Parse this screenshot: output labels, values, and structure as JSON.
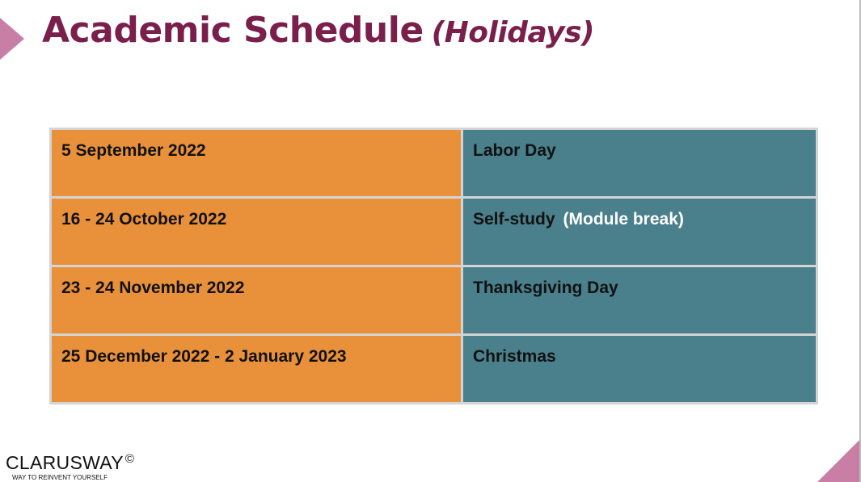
{
  "title": {
    "main": "Academic Schedule",
    "sub": "(Holidays)"
  },
  "schedule": [
    {
      "date": "5 September 2022",
      "event": "Labor Day",
      "extra": ""
    },
    {
      "date": "16 - 24 October 2022",
      "event": "Self-study",
      "extra": "(Module break)"
    },
    {
      "date": "23 - 24 November 2022",
      "event": "Thanksgiving Day",
      "extra": ""
    },
    {
      "date": "25 December 2022 - 2 January 2023",
      "event": "Christmas",
      "extra": ""
    }
  ],
  "brand": {
    "name": "CLARUSWAY",
    "mark": "©",
    "tagline": "WAY TO REINVENT YOURSELF"
  },
  "colors": {
    "title": "#7a1f4b",
    "date_cell": "#e9913a",
    "event_cell": "#4a7f8c",
    "accent_shape": "#c97fa5"
  },
  "icons": [
    "left-arrow-shape",
    "corner-triangle-shape"
  ]
}
